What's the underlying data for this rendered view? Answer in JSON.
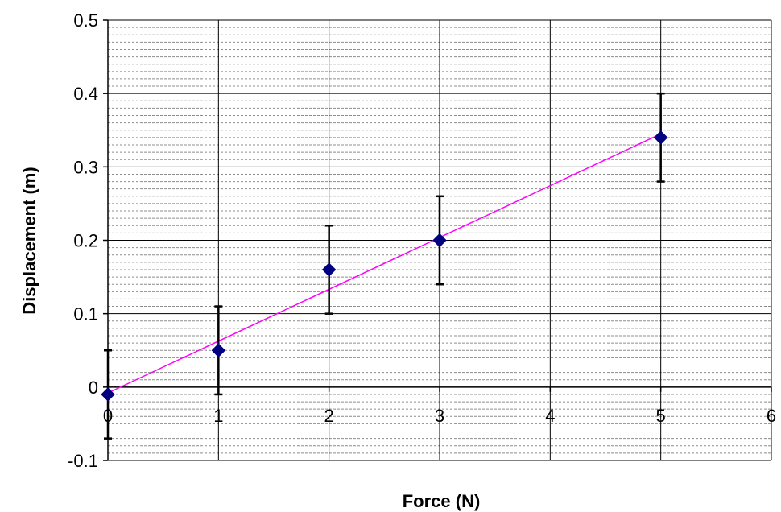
{
  "chart_data": {
    "type": "scatter",
    "title": "",
    "xlabel": "Force (N)",
    "ylabel": "Displacement (m)",
    "xlim": [
      0,
      6
    ],
    "ylim": [
      -0.1,
      0.5
    ],
    "xticks": [
      0,
      1,
      2,
      3,
      4,
      5,
      6
    ],
    "yticks": [
      -0.1,
      0,
      0.1,
      0.2,
      0.3,
      0.4,
      0.5
    ],
    "x_tick_labels": [
      "0",
      "1",
      "2",
      "3",
      "4",
      "5",
      "6"
    ],
    "y_tick_labels": [
      "-0.1",
      "0",
      "0.1",
      "0.2",
      "0.3",
      "0.4",
      "0.5"
    ],
    "grid": {
      "x_major": true,
      "y_major": true,
      "y_minor_step": 0.01
    },
    "legend": "none",
    "series": [
      {
        "x": [
          0,
          1,
          2,
          3,
          5
        ],
        "y": [
          -0.01,
          0.05,
          0.16,
          0.2,
          0.34
        ],
        "error_y": 0.06,
        "marker": "diamond",
        "color": "#000080"
      }
    ],
    "trendline": {
      "type": "linear",
      "x": [
        0,
        5
      ],
      "y": [
        -0.008,
        0.345
      ],
      "color": "#ff00ff"
    }
  }
}
